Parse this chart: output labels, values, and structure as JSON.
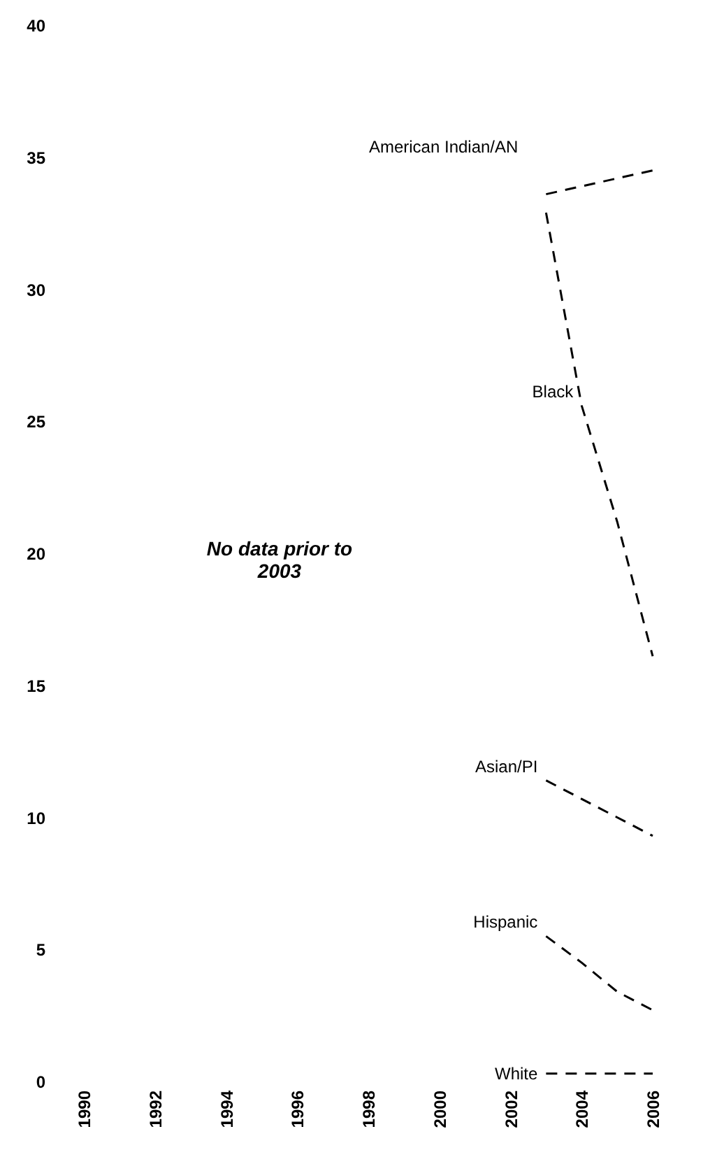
{
  "chart_data": {
    "type": "line",
    "x": [
      2003,
      2004,
      2005,
      2006
    ],
    "series": [
      {
        "name": "American Indian/AN",
        "color": "#000000",
        "values": [
          33.6,
          33.9,
          34.2,
          34.5
        ]
      },
      {
        "name": "Black",
        "color": "#000000",
        "values": [
          32.9,
          25.6,
          21.2,
          16.1
        ]
      },
      {
        "name": "Asian/PI",
        "color": "#000000",
        "values": [
          11.4,
          10.7,
          10.0,
          9.3
        ]
      },
      {
        "name": "Hispanic",
        "color": "#000000",
        "values": [
          5.5,
          4.5,
          3.4,
          2.7
        ]
      },
      {
        "name": "White",
        "color": "#000000",
        "values": [
          0.3,
          0.3,
          0.3,
          0.3
        ]
      }
    ],
    "xlim": [
      1990,
      2006
    ],
    "xticks": [
      1990,
      1992,
      1994,
      1996,
      1998,
      2000,
      2002,
      2004,
      2006
    ],
    "ylim": [
      0,
      40
    ],
    "yticks": [
      0,
      5,
      10,
      15,
      20,
      25,
      30,
      35,
      40
    ],
    "annotations": [
      "No data prior to 2003"
    ],
    "grid": false,
    "legend": false,
    "marker": "none",
    "line_style": "dashed"
  }
}
